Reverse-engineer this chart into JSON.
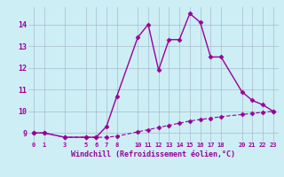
{
  "title": "",
  "xlabel": "Windchill (Refroidissement éolien,°C)",
  "x_values": [
    0,
    1,
    3,
    5,
    6,
    7,
    8,
    10,
    11,
    12,
    13,
    14,
    15,
    16,
    17,
    18,
    20,
    21,
    22,
    23
  ],
  "y_line1": [
    9.0,
    9.0,
    8.8,
    8.8,
    8.8,
    9.3,
    10.7,
    13.4,
    14.0,
    11.9,
    13.3,
    13.3,
    14.5,
    14.1,
    12.5,
    12.5,
    10.9,
    10.5,
    10.3,
    10.0
  ],
  "y_line2": [
    9.0,
    9.0,
    8.8,
    8.8,
    8.8,
    8.8,
    8.85,
    9.05,
    9.15,
    9.25,
    9.35,
    9.45,
    9.55,
    9.62,
    9.68,
    9.75,
    9.85,
    9.9,
    9.95,
    10.0
  ],
  "line_color": "#990099",
  "bg_color": "#cdeef5",
  "grid_color": "#aabbcc",
  "ylim": [
    8.6,
    14.8
  ],
  "yticks": [
    9,
    10,
    11,
    12,
    13,
    14
  ],
  "xlim": [
    -0.5,
    23.5
  ],
  "xtick_positions": [
    0,
    1,
    3,
    5,
    6,
    7,
    8,
    10,
    11,
    12,
    13,
    14,
    15,
    16,
    17,
    18,
    20,
    21,
    22,
    23
  ],
  "xtick_labels": [
    "0",
    "1",
    "3",
    "5",
    "6",
    "7",
    "8",
    "10",
    "11",
    "12",
    "13",
    "14",
    "15",
    "16",
    "17",
    "18",
    "20",
    "21",
    "22",
    "23"
  ],
  "marker": "D",
  "markersize": 2.5,
  "linewidth": 1.0
}
